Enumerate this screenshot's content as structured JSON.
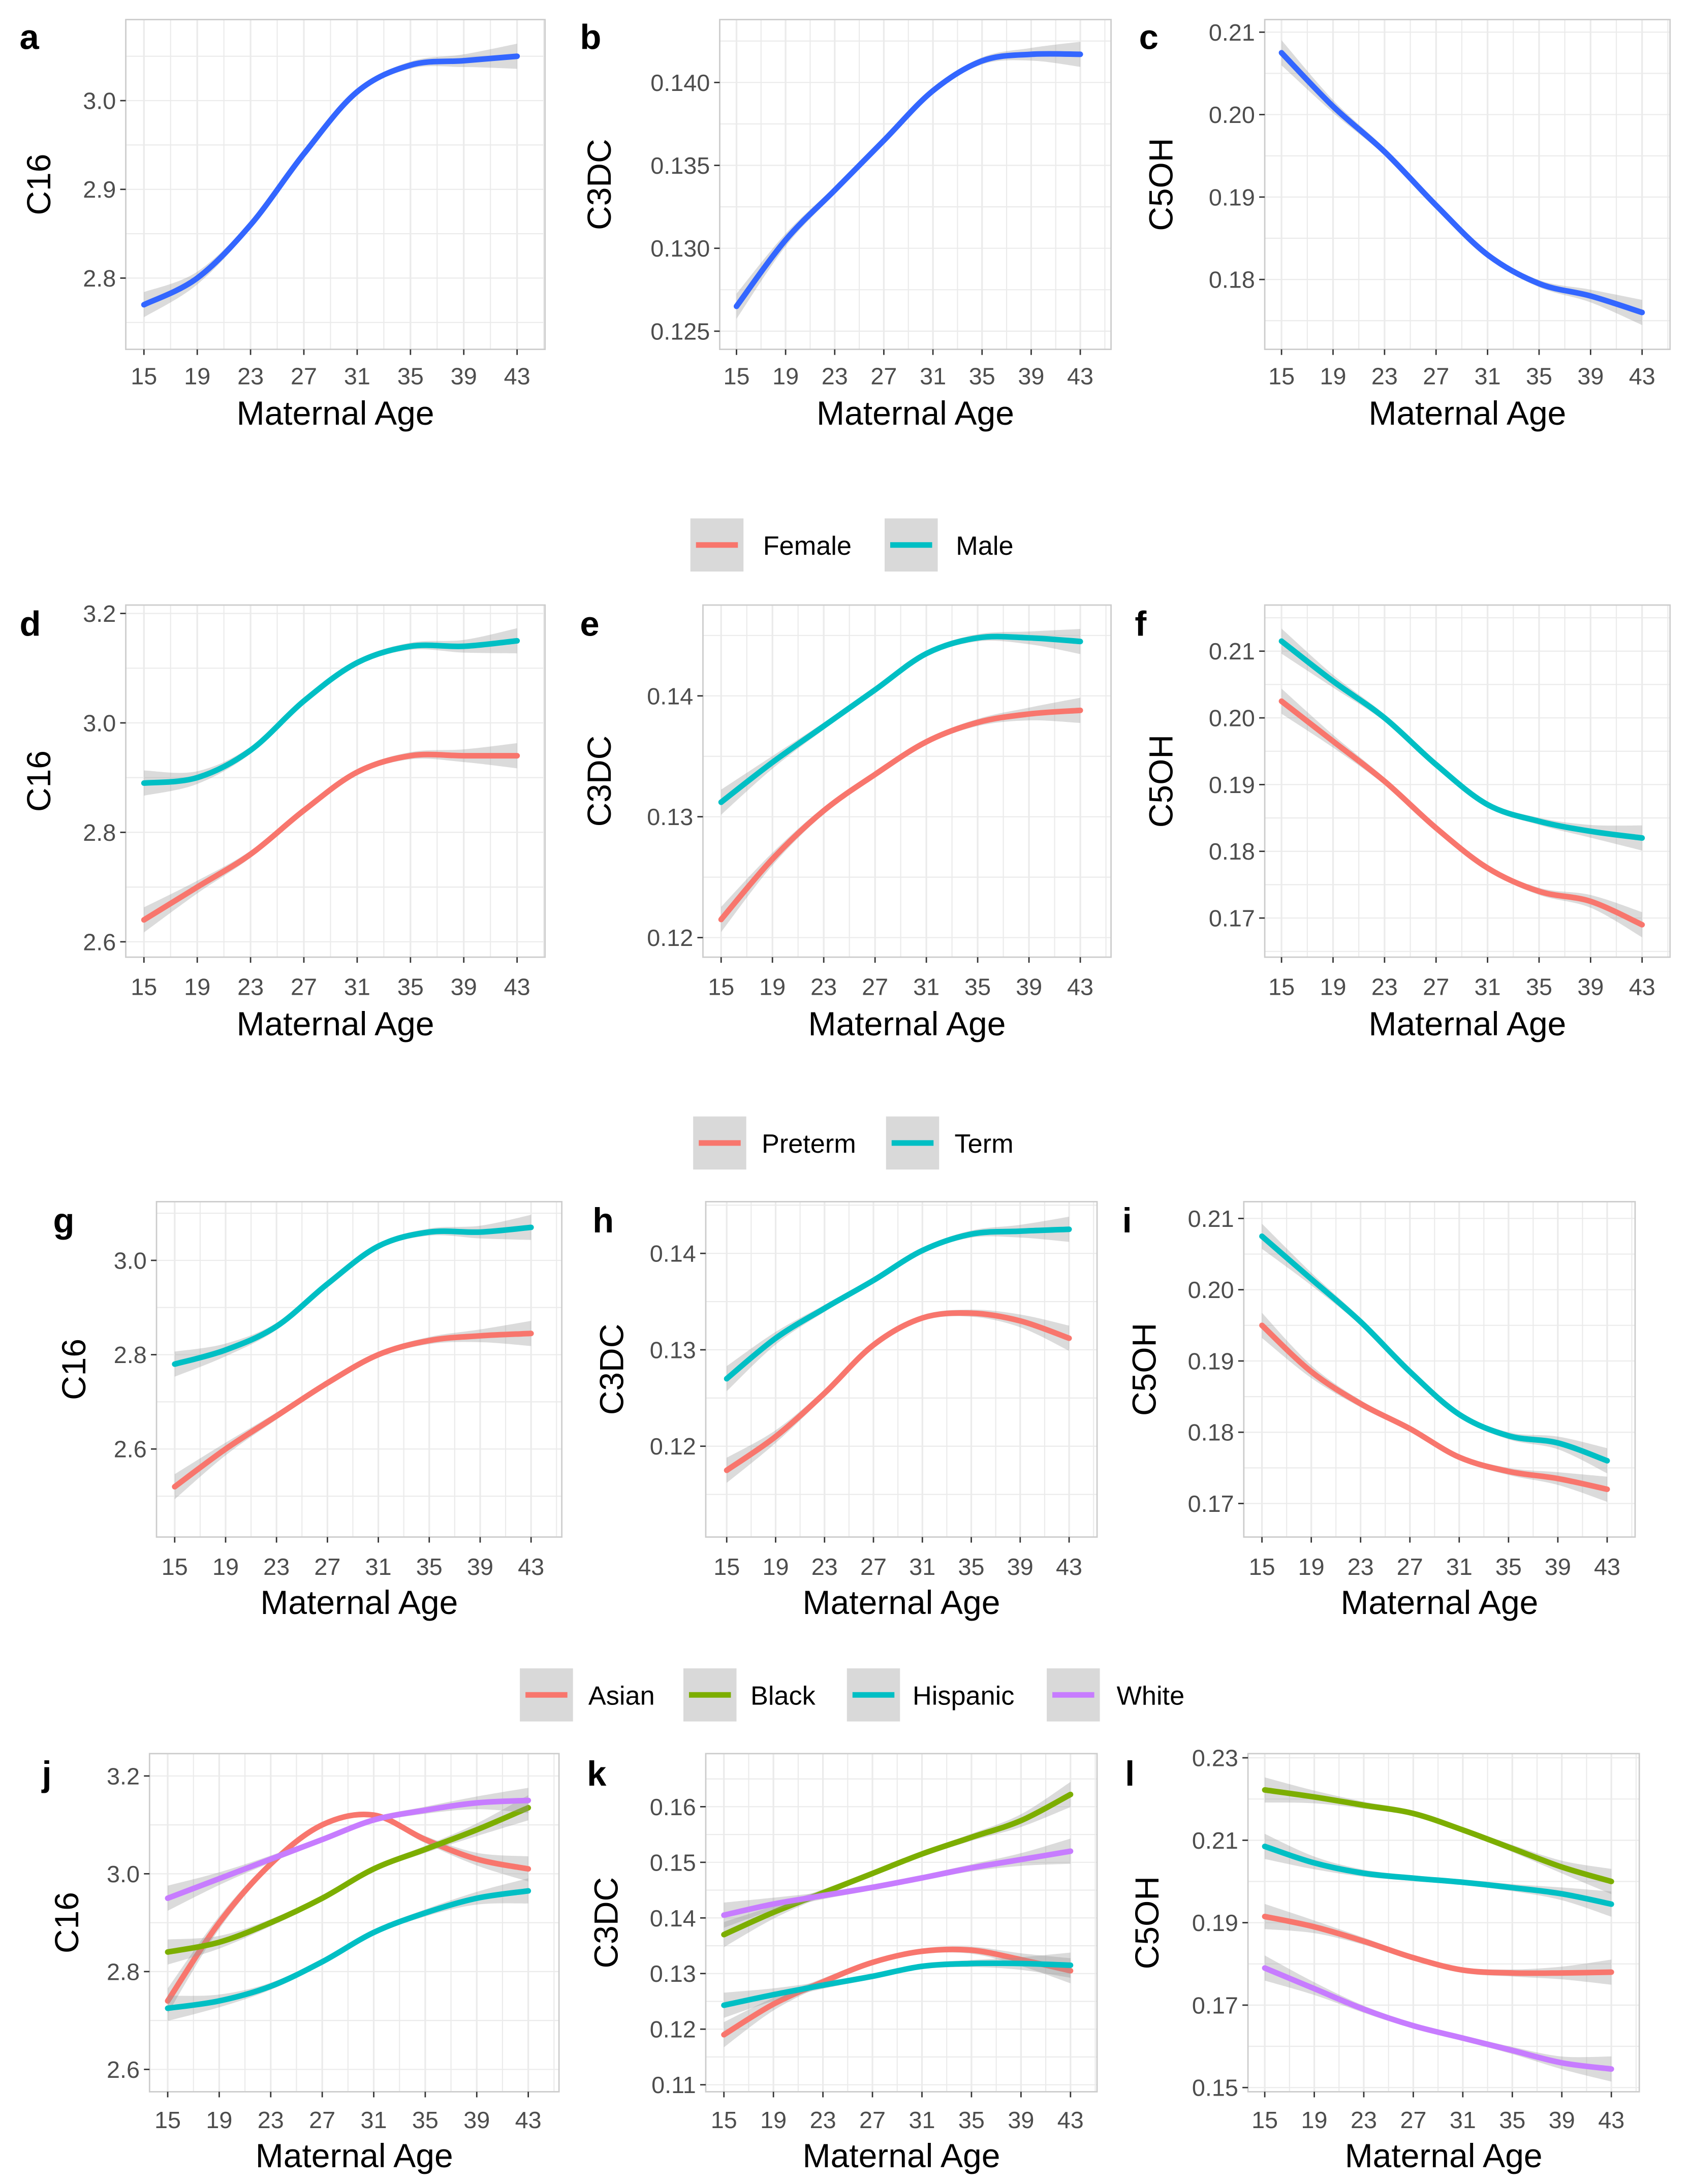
{
  "colors": {
    "overall": "#3366FF",
    "Female": "#F8766D",
    "Male": "#00BFC4",
    "Preterm": "#F8766D",
    "Term": "#00BFC4",
    "Asian": "#F8766D",
    "Black": "#7CAE00",
    "Hispanic": "#00BFC4",
    "White": "#C77CFF",
    "ci_band": "#999999",
    "grid": "#ebebeb",
    "panel_border": "#cccccc"
  },
  "legends": [
    {
      "entries": [
        "Female",
        "Male"
      ]
    },
    {
      "entries": [
        "Preterm",
        "Term"
      ]
    },
    {
      "entries": [
        "Asian",
        "Black",
        "Hispanic",
        "White"
      ]
    }
  ],
  "chart_data": [
    {
      "panel": "a",
      "type": "line",
      "xlabel": "Maternal Age",
      "ylabel": "C16",
      "x_ticks": [
        "15",
        "19",
        "23",
        "27",
        "31",
        "35",
        "39",
        "43"
      ],
      "y_ticks": [
        "2.8",
        "2.9",
        "3.0"
      ],
      "grid": true,
      "x": [
        15,
        19,
        23,
        27,
        31,
        35,
        39,
        43
      ],
      "series": [
        {
          "values": [
            2.77,
            2.8,
            2.86,
            2.94,
            3.01,
            3.04,
            3.045,
            3.05
          ]
        }
      ]
    },
    {
      "panel": "b",
      "type": "line",
      "xlabel": "Maternal Age",
      "ylabel": "C3DC",
      "x_ticks": [
        "15",
        "19",
        "23",
        "27",
        "31",
        "35",
        "39",
        "43"
      ],
      "y_ticks": [
        "0.125",
        "0.130",
        "0.135",
        "0.140"
      ],
      "grid": true,
      "x": [
        15,
        19,
        23,
        27,
        31,
        35,
        39,
        43
      ],
      "series": [
        {
          "values": [
            0.1265,
            0.1305,
            0.1335,
            0.1365,
            0.1395,
            0.1413,
            0.1417,
            0.1417
          ]
        }
      ]
    },
    {
      "panel": "c",
      "type": "line",
      "xlabel": "Maternal Age",
      "ylabel": "C5OH",
      "x_ticks": [
        "15",
        "19",
        "23",
        "27",
        "31",
        "35",
        "39",
        "43"
      ],
      "y_ticks": [
        "0.18",
        "0.19",
        "0.20",
        "0.21"
      ],
      "grid": true,
      "x": [
        15,
        19,
        23,
        27,
        31,
        35,
        39,
        43
      ],
      "series": [
        {
          "values": [
            0.2075,
            0.201,
            0.1955,
            0.189,
            0.183,
            0.1795,
            0.178,
            0.176
          ]
        }
      ]
    },
    {
      "panel": "d",
      "type": "line",
      "xlabel": "Maternal Age",
      "ylabel": "C16",
      "x_ticks": [
        "15",
        "19",
        "23",
        "27",
        "31",
        "35",
        "39",
        "43"
      ],
      "y_ticks": [
        "2.6",
        "2.8",
        "3.0",
        "3.2"
      ],
      "grid": true,
      "x": [
        15,
        19,
        23,
        27,
        31,
        35,
        39,
        43
      ],
      "series": [
        {
          "name": "Female",
          "values": [
            2.64,
            2.7,
            2.76,
            2.84,
            2.91,
            2.94,
            2.94,
            2.94
          ]
        },
        {
          "name": "Male",
          "values": [
            2.89,
            2.9,
            2.95,
            3.04,
            3.11,
            3.14,
            3.14,
            3.15
          ]
        }
      ]
    },
    {
      "panel": "e",
      "type": "line",
      "xlabel": "Maternal Age",
      "ylabel": "C3DC",
      "x_ticks": [
        "15",
        "19",
        "23",
        "27",
        "31",
        "35",
        "39",
        "43"
      ],
      "y_ticks": [
        "0.12",
        "0.13",
        "0.14"
      ],
      "grid": true,
      "x": [
        15,
        19,
        23,
        27,
        31,
        35,
        39,
        43
      ],
      "series": [
        {
          "name": "Female",
          "values": [
            0.1215,
            0.1265,
            0.1305,
            0.1335,
            0.1362,
            0.1378,
            0.1385,
            0.1388
          ]
        },
        {
          "name": "Male",
          "values": [
            0.1312,
            0.1345,
            0.1375,
            0.1405,
            0.1435,
            0.1448,
            0.1448,
            0.1445
          ]
        }
      ]
    },
    {
      "panel": "f",
      "type": "line",
      "xlabel": "Maternal Age",
      "ylabel": "C5OH",
      "x_ticks": [
        "15",
        "19",
        "23",
        "27",
        "31",
        "35",
        "39",
        "43"
      ],
      "y_ticks": [
        "0.17",
        "0.18",
        "0.19",
        "0.20",
        "0.21"
      ],
      "grid": true,
      "x": [
        15,
        19,
        23,
        27,
        31,
        35,
        39,
        43
      ],
      "series": [
        {
          "name": "Female",
          "values": [
            0.2025,
            0.1965,
            0.1905,
            0.1835,
            0.1775,
            0.174,
            0.1725,
            0.169
          ]
        },
        {
          "name": "Male",
          "values": [
            0.2115,
            0.2055,
            0.2,
            0.193,
            0.187,
            0.1845,
            0.183,
            0.182
          ]
        }
      ]
    },
    {
      "panel": "g",
      "type": "line",
      "xlabel": "Maternal Age",
      "ylabel": "C16",
      "x_ticks": [
        "15",
        "19",
        "23",
        "27",
        "31",
        "35",
        "39",
        "43"
      ],
      "y_ticks": [
        "2.6",
        "2.8",
        "3.0"
      ],
      "grid": true,
      "x": [
        15,
        19,
        23,
        27,
        31,
        35,
        39,
        43
      ],
      "series": [
        {
          "name": "Preterm",
          "values": [
            2.52,
            2.6,
            2.67,
            2.74,
            2.8,
            2.83,
            2.84,
            2.845
          ]
        },
        {
          "name": "Term",
          "values": [
            2.78,
            2.81,
            2.86,
            2.95,
            3.03,
            3.06,
            3.06,
            3.07
          ]
        }
      ]
    },
    {
      "panel": "h",
      "type": "line",
      "xlabel": "Maternal Age",
      "ylabel": "C3DC",
      "x_ticks": [
        "15",
        "19",
        "23",
        "27",
        "31",
        "35",
        "39",
        "43"
      ],
      "y_ticks": [
        "0.12",
        "0.13",
        "0.14"
      ],
      "grid": true,
      "x": [
        15,
        19,
        23,
        27,
        31,
        35,
        39,
        43
      ],
      "series": [
        {
          "name": "Preterm",
          "values": [
            0.1175,
            0.121,
            0.1255,
            0.1305,
            0.1333,
            0.1338,
            0.133,
            0.1312
          ]
        },
        {
          "name": "Term",
          "values": [
            0.127,
            0.1312,
            0.1343,
            0.1372,
            0.1403,
            0.142,
            0.1423,
            0.1425
          ]
        }
      ]
    },
    {
      "panel": "i",
      "type": "line",
      "xlabel": "Maternal Age",
      "ylabel": "C5OH",
      "x_ticks": [
        "15",
        "19",
        "23",
        "27",
        "31",
        "35",
        "39",
        "43"
      ],
      "y_ticks": [
        "0.17",
        "0.18",
        "0.19",
        "0.20",
        "0.21"
      ],
      "grid": true,
      "x": [
        15,
        19,
        23,
        27,
        31,
        35,
        39,
        43
      ],
      "series": [
        {
          "name": "Preterm",
          "values": [
            0.195,
            0.1885,
            0.184,
            0.1805,
            0.1765,
            0.1745,
            0.1735,
            0.172
          ]
        },
        {
          "name": "Term",
          "values": [
            0.2075,
            0.2015,
            0.1955,
            0.1885,
            0.1825,
            0.1795,
            0.1785,
            0.176
          ]
        }
      ]
    },
    {
      "panel": "j",
      "type": "line",
      "xlabel": "Maternal Age",
      "ylabel": "C16",
      "x_ticks": [
        "15",
        "19",
        "23",
        "27",
        "31",
        "35",
        "39",
        "43"
      ],
      "y_ticks": [
        "2.6",
        "2.8",
        "3.0",
        "3.2"
      ],
      "grid": true,
      "x": [
        15,
        19,
        23,
        27,
        31,
        35,
        39,
        43
      ],
      "series": [
        {
          "name": "Asian",
          "values": [
            2.74,
            2.9,
            3.02,
            3.1,
            3.12,
            3.07,
            3.03,
            3.01
          ]
        },
        {
          "name": "Black",
          "values": [
            2.84,
            2.86,
            2.9,
            2.95,
            3.01,
            3.05,
            3.09,
            3.135
          ]
        },
        {
          "name": "Hispanic",
          "values": [
            2.725,
            2.74,
            2.77,
            2.82,
            2.88,
            2.92,
            2.95,
            2.965
          ]
        },
        {
          "name": "White",
          "values": [
            2.95,
            2.99,
            3.03,
            3.07,
            3.11,
            3.13,
            3.145,
            3.15
          ]
        }
      ]
    },
    {
      "panel": "k",
      "type": "line",
      "xlabel": "Maternal Age",
      "ylabel": "C3DC",
      "x_ticks": [
        "15",
        "19",
        "23",
        "27",
        "31",
        "35",
        "39",
        "43"
      ],
      "y_ticks": [
        "0.11",
        "0.12",
        "0.13",
        "0.14",
        "0.15",
        "0.16"
      ],
      "grid": true,
      "x": [
        15,
        19,
        23,
        27,
        31,
        35,
        39,
        43
      ],
      "series": [
        {
          "name": "Asian",
          "values": [
            0.119,
            0.1245,
            0.1285,
            0.132,
            0.134,
            0.1342,
            0.1325,
            0.1305
          ]
        },
        {
          "name": "Black",
          "values": [
            0.137,
            0.141,
            0.1445,
            0.148,
            0.1515,
            0.1545,
            0.1575,
            0.1622
          ]
        },
        {
          "name": "Hispanic",
          "values": [
            0.1243,
            0.1262,
            0.1279,
            0.1295,
            0.1313,
            0.1318,
            0.1318,
            0.1315
          ]
        },
        {
          "name": "White",
          "values": [
            0.1405,
            0.1425,
            0.144,
            0.1455,
            0.1472,
            0.149,
            0.1505,
            0.152
          ]
        }
      ]
    },
    {
      "panel": "l",
      "type": "line",
      "xlabel": "Maternal Age",
      "ylabel": "C5OH",
      "x_ticks": [
        "15",
        "19",
        "23",
        "27",
        "31",
        "35",
        "39",
        "43"
      ],
      "y_ticks": [
        "0.15",
        "0.17",
        "0.19",
        "0.21",
        "0.23"
      ],
      "grid": true,
      "x": [
        15,
        19,
        23,
        27,
        31,
        35,
        39,
        43
      ],
      "series": [
        {
          "name": "Asian",
          "values": [
            0.1915,
            0.189,
            0.1855,
            0.1815,
            0.1785,
            0.1778,
            0.1778,
            0.178
          ]
        },
        {
          "name": "Black",
          "values": [
            0.2222,
            0.2205,
            0.2185,
            0.2165,
            0.2125,
            0.208,
            0.2035,
            0.2
          ]
        },
        {
          "name": "Hispanic",
          "values": [
            0.2085,
            0.2045,
            0.202,
            0.2008,
            0.1998,
            0.1985,
            0.197,
            0.1945
          ]
        },
        {
          "name": "White",
          "values": [
            0.179,
            0.174,
            0.169,
            0.165,
            0.162,
            0.159,
            0.156,
            0.1545
          ]
        }
      ]
    }
  ]
}
